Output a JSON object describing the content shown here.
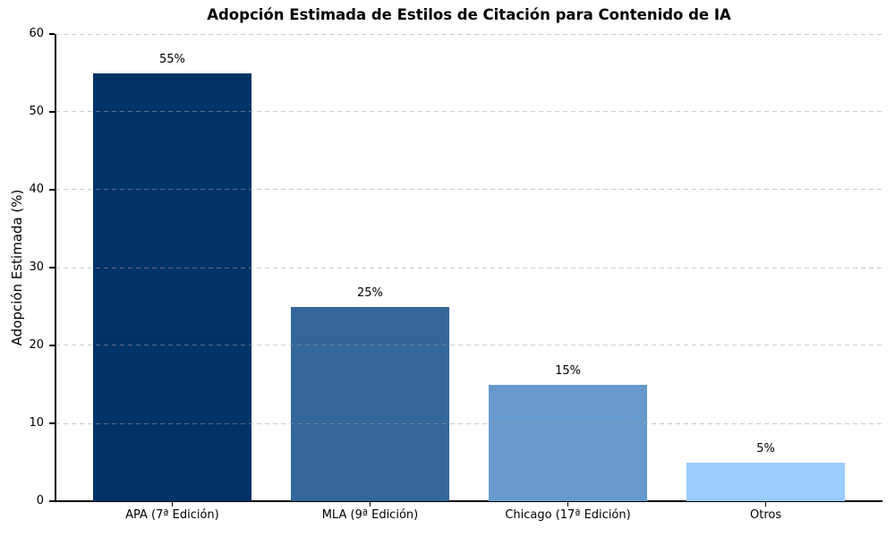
{
  "chart_data": {
    "type": "bar",
    "title": "Adopción Estimada de Estilos de Citación para Contenido de IA",
    "xlabel": "",
    "ylabel": "Adopción Estimada (%)",
    "categories": [
      "APA (7ª Edición)",
      "MLA (9ª Edición)",
      "Chicago (17ª Edición)",
      "Otros"
    ],
    "values": [
      55,
      25,
      15,
      5
    ],
    "value_labels": [
      "55%",
      "25%",
      "15%",
      "5%"
    ],
    "bar_colors": [
      "#003366",
      "#336699",
      "#6699CC",
      "#99CCFF"
    ],
    "ylim": [
      0,
      60
    ],
    "yticks": [
      0,
      10,
      20,
      30,
      40,
      50,
      60
    ],
    "grid": "horizontal-dashed-over-bars",
    "grid_color": "#cbcbcb",
    "axis_color": "#000000",
    "background_color": "#ffffff",
    "legend": "none"
  }
}
